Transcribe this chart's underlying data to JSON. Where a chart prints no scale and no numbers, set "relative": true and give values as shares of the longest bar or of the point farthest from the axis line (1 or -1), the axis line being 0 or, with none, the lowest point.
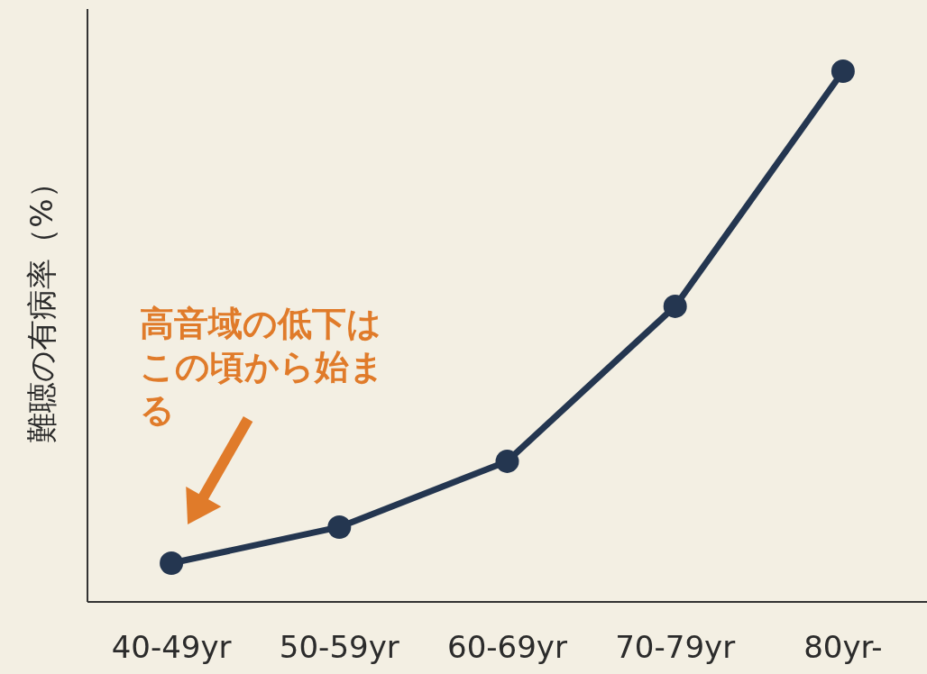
{
  "chart_data": {
    "type": "line",
    "relative": true,
    "ylabel": "難聴の有病率（%）",
    "categories": [
      "40-49yr",
      "50-59yr",
      "60-69yr",
      "70-79yr",
      "80yr-"
    ],
    "series": [
      {
        "color": "#243650",
        "values": [
          0.073,
          0.141,
          0.265,
          0.557,
          1
        ]
      }
    ],
    "marker": "circle",
    "annotations": [
      "高音域の低下はこの頃から始まる"
    ]
  }
}
